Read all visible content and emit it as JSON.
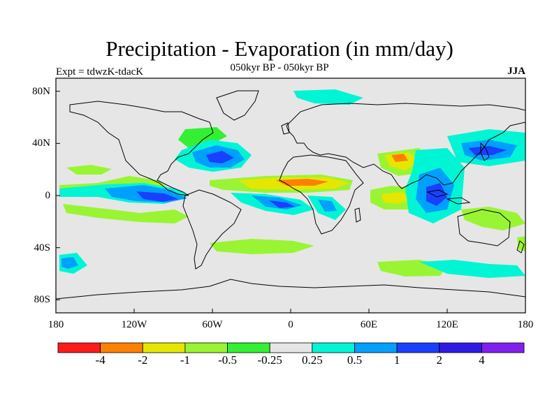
{
  "title": "Precipitation - Evaporation (in mm/day)",
  "subtitle": "050kyr BP - 050kyr BP",
  "left_label": "Expt = tdwzK-tdacK",
  "right_label": "JJA",
  "axes": {
    "lat_ticks": [
      "80N",
      "40N",
      "0",
      "40S",
      "80S"
    ],
    "lon_ticks": [
      "180",
      "120W",
      "60W",
      "0",
      "60E",
      "120E",
      "180"
    ],
    "lat_range": [
      -90,
      90
    ],
    "lon_range": [
      -180,
      180
    ]
  },
  "colorbar": {
    "colors": [
      "#ff1a1a",
      "#ff8000",
      "#e6e600",
      "#99f533",
      "#33f033",
      "#e6e6e6",
      "#00f5d4",
      "#00a0ff",
      "#1a40ff",
      "#2d1ae6",
      "#8020f0"
    ],
    "labels": [
      "-4",
      "-2",
      "-1",
      "-0.5",
      "-0.25",
      "0.25",
      "0.5",
      "1",
      "2",
      "4"
    ]
  },
  "map": {
    "background_color": "#e6e6e6",
    "coastline_color": "#000000"
  }
}
